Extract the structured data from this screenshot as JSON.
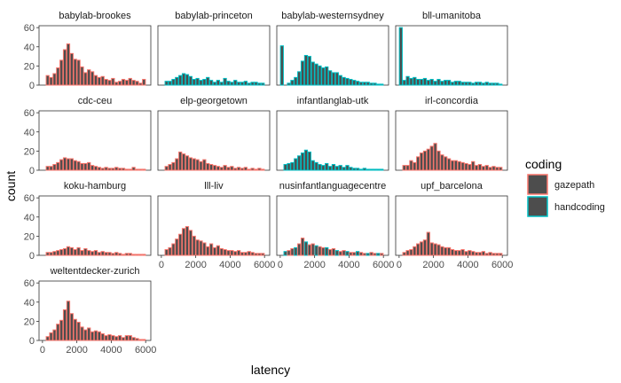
{
  "chart_data": {
    "type": "bar",
    "subtype": "faceted-histogram",
    "xlabel": "latency",
    "ylabel": "count",
    "xlim": [
      -200,
      6300
    ],
    "ylim": [
      0,
      62
    ],
    "x_ticks": [
      0,
      2000,
      4000,
      6000
    ],
    "y_ticks": [
      0,
      20,
      40,
      60
    ],
    "bin_width": 200,
    "bin_starts": [
      0,
      200,
      400,
      600,
      800,
      1000,
      1200,
      1400,
      1600,
      1800,
      2000,
      2200,
      2400,
      2600,
      2800,
      3000,
      3200,
      3400,
      3600,
      3800,
      4000,
      4200,
      4400,
      4600,
      4800,
      5000,
      5200,
      5400,
      5600,
      5800,
      6000
    ],
    "grid": false,
    "legend_title": "coding",
    "legend_position": "right",
    "legend": [
      {
        "name": "gazepath",
        "color": "#F8766D"
      },
      {
        "name": "handcoding",
        "color": "#00BFC4"
      }
    ],
    "fill_color": "#4d4d4d",
    "panels": [
      {
        "name": "babylab-brookes",
        "coding": "gazepath",
        "values": [
          0,
          10,
          8,
          12,
          18,
          26,
          37,
          43,
          33,
          27,
          26,
          19,
          13,
          16,
          14,
          10,
          8,
          9,
          6,
          5,
          7,
          3,
          4,
          6,
          5,
          7,
          5,
          4,
          2,
          6,
          0
        ]
      },
      {
        "name": "babylab-princeton",
        "coding": "handcoding",
        "values": [
          0,
          4,
          4,
          6,
          8,
          10,
          12,
          11,
          9,
          6,
          7,
          5,
          6,
          8,
          5,
          3,
          5,
          3,
          7,
          4,
          3,
          5,
          3,
          3,
          4,
          2,
          3,
          3,
          2,
          2,
          0
        ]
      },
      {
        "name": "babylab-westernsydney",
        "coding": "handcoding",
        "values": [
          41,
          0,
          2,
          5,
          8,
          14,
          25,
          31,
          30,
          24,
          22,
          20,
          18,
          19,
          15,
          13,
          13,
          10,
          8,
          7,
          6,
          5,
          4,
          3,
          3,
          3,
          2,
          2,
          1,
          1,
          0
        ]
      },
      {
        "name": "bll-umanitoba",
        "coding": "handcoding",
        "values": [
          60,
          5,
          9,
          7,
          8,
          6,
          6,
          7,
          5,
          6,
          4,
          6,
          4,
          5,
          5,
          3,
          4,
          4,
          3,
          3,
          3,
          2,
          3,
          3,
          2,
          3,
          2,
          2,
          2,
          1,
          0
        ]
      },
      {
        "name": "cdc-ceu",
        "coding": "gazepath",
        "values": [
          0,
          4,
          4,
          6,
          8,
          11,
          13,
          12,
          12,
          10,
          9,
          7,
          7,
          8,
          5,
          4,
          3,
          2,
          3,
          2,
          2,
          3,
          2,
          2,
          1,
          1,
          3,
          1,
          1,
          1,
          0
        ]
      },
      {
        "name": "elp-georgetown",
        "coding": "gazepath",
        "values": [
          0,
          4,
          6,
          8,
          12,
          19,
          17,
          15,
          13,
          12,
          11,
          9,
          11,
          7,
          6,
          5,
          4,
          3,
          5,
          3,
          4,
          2,
          3,
          2,
          3,
          1,
          2,
          1,
          2,
          1,
          0
        ]
      },
      {
        "name": "infantlanglab-utk",
        "coding": "handcoding",
        "values": [
          0,
          6,
          7,
          8,
          12,
          15,
          18,
          21,
          19,
          10,
          8,
          6,
          5,
          7,
          4,
          6,
          4,
          5,
          3,
          5,
          3,
          2,
          2,
          1,
          2,
          1,
          1,
          1,
          1,
          1,
          0
        ]
      },
      {
        "name": "irl-concordia",
        "coding": "gazepath",
        "values": [
          0,
          5,
          5,
          10,
          8,
          14,
          18,
          20,
          22,
          25,
          28,
          20,
          16,
          14,
          12,
          10,
          10,
          9,
          8,
          7,
          6,
          9,
          5,
          6,
          4,
          5,
          3,
          4,
          3,
          3,
          0
        ]
      },
      {
        "name": "koku-hamburg",
        "coding": "gazepath",
        "values": [
          0,
          3,
          3,
          4,
          5,
          6,
          7,
          9,
          8,
          6,
          8,
          5,
          7,
          5,
          4,
          5,
          3,
          4,
          3,
          3,
          2,
          3,
          2,
          1,
          2,
          2,
          1,
          1,
          1,
          1,
          0
        ]
      },
      {
        "name": "lll-liv",
        "coding": "gazepath",
        "values": [
          0,
          6,
          8,
          12,
          17,
          22,
          28,
          30,
          26,
          20,
          16,
          15,
          13,
          9,
          12,
          8,
          10,
          7,
          6,
          5,
          5,
          4,
          5,
          3,
          3,
          4,
          3,
          2,
          2,
          2,
          0
        ]
      },
      {
        "name": "nusinfantlanguagecentre",
        "coding": "mixed",
        "values": [
          0,
          4,
          5,
          7,
          8,
          12,
          18,
          14,
          11,
          12,
          10,
          9,
          8,
          8,
          6,
          7,
          5,
          4,
          5,
          4,
          3,
          3,
          4,
          3,
          2,
          2,
          3,
          2,
          2,
          2,
          0
        ]
      },
      {
        "name": "upf_barcelona",
        "coding": "gazepath",
        "values": [
          0,
          3,
          5,
          6,
          9,
          12,
          14,
          16,
          24,
          13,
          12,
          11,
          9,
          8,
          8,
          6,
          5,
          5,
          6,
          4,
          5,
          4,
          3,
          3,
          4,
          2,
          3,
          2,
          2,
          2,
          0
        ]
      },
      {
        "name": "weltentdecker-zurich",
        "coding": "gazepath",
        "values": [
          0,
          4,
          8,
          11,
          17,
          21,
          32,
          41,
          28,
          22,
          19,
          14,
          11,
          13,
          9,
          10,
          9,
          7,
          5,
          6,
          5,
          4,
          5,
          3,
          5,
          5,
          3,
          2,
          1,
          1,
          0
        ]
      }
    ]
  }
}
